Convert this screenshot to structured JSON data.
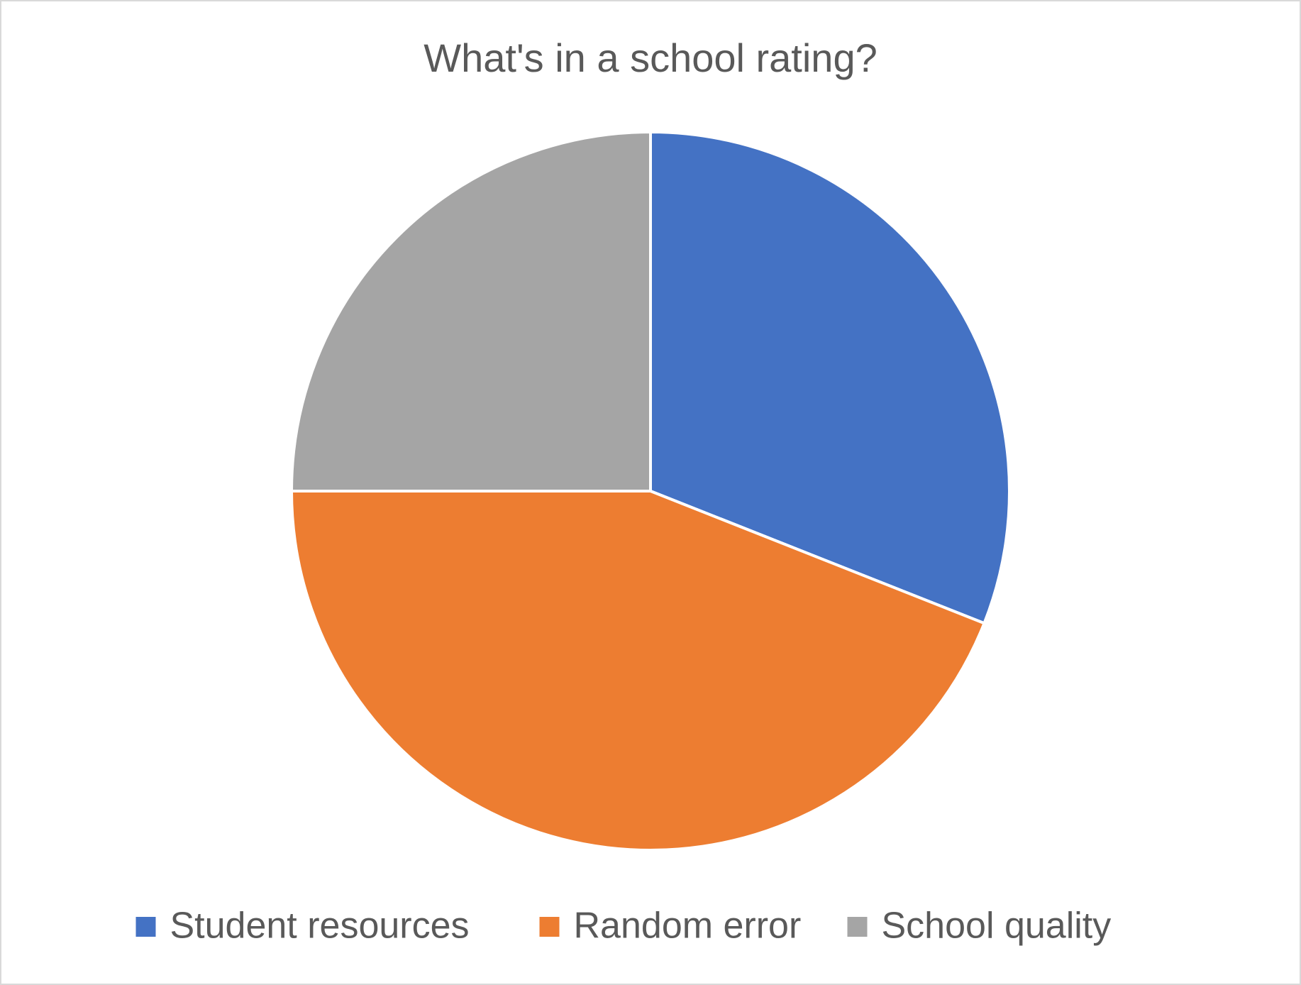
{
  "chart_data": {
    "type": "pie",
    "title": "What's in a school rating?",
    "categories": [
      "Student resources",
      "Random error",
      "School quality"
    ],
    "values": [
      31,
      44,
      25
    ],
    "colors": [
      "#4472c4",
      "#ed7d31",
      "#a5a5a5"
    ],
    "legend": "bottom"
  }
}
